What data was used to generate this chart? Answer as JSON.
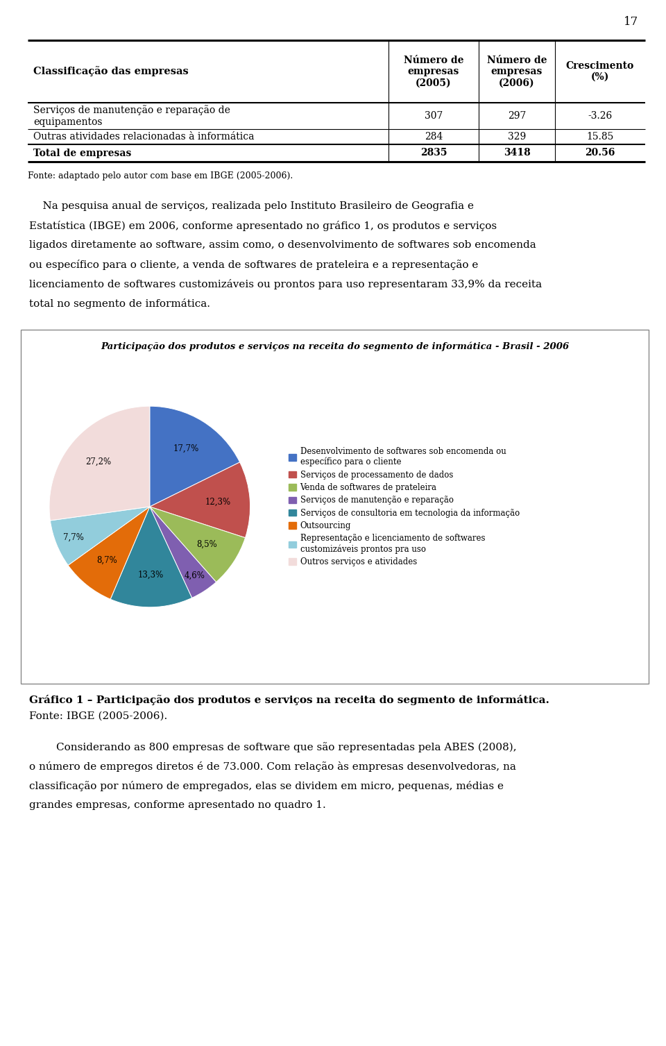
{
  "page_number": "17",
  "table": {
    "col_headers": [
      "Classificação das empresas",
      "Número de\nempresas\n(2005)",
      "Número de\nempresas\n(2006)",
      "Crescimento\n(%)"
    ],
    "rows": [
      [
        "Serviços de manutenção e reparação de\nequipamentos",
        "307",
        "297",
        "-3.26"
      ],
      [
        "Outras atividades relacionadas à informática",
        "284",
        "329",
        "15.85"
      ],
      [
        "Total de empresas",
        "2835",
        "3418",
        "20.56"
      ]
    ],
    "source": "Fonte: adaptado pelo autor com base em IBGE (2005-2006)."
  },
  "para1_lines": [
    "    Na pesquisa anual de serviços, realizada pelo Instituto Brasileiro de Geografia e",
    "Estatística (IBGE) em 2006, conforme apresentado no gráfico 1, os produtos e serviços",
    "ligados diretamente ao software, assim como, o desenvolvimento de softwares sob encomenda",
    "ou específico para o cliente, a venda de softwares de prateleira e a representação e",
    "licenciamento de softwares customizáveis ou prontos para uso representaram 33,9% da receita",
    "total no segmento de informática."
  ],
  "chart": {
    "title": "Participação dos produtos e serviços na receita do segmento de informática - Brasil - 2006",
    "slices": [
      17.7,
      12.3,
      8.5,
      4.6,
      13.3,
      8.7,
      7.7,
      27.2
    ],
    "pct_labels": [
      "17,7%",
      "12,3%",
      "8,5%",
      "4,6%",
      "13,3%",
      "8,7%",
      "7,7%",
      "27,2%"
    ],
    "colors": [
      "#4472C4",
      "#C0504D",
      "#9BBB59",
      "#7F5FB0",
      "#31869B",
      "#E36C09",
      "#92CDDC",
      "#F2DCDB"
    ],
    "legend_labels": [
      "Desenvolvimento de softwares sob encomenda ou\nespecífico para o cliente",
      "Serviços de processamento de dados",
      "Venda de softwares de prateleira",
      "Serviços de manutenção e reparação",
      "Serviços de consultoria em tecnologia da informação",
      "Outsourcing",
      "Representação e licenciamento de softwares\ncustomizáveis prontos pra uso",
      "Outros serviços e atividades"
    ]
  },
  "caption_bold": "Gráfico 1 – Participação dos produtos e serviços na receita do segmento de informática.",
  "caption_source": "Fonte: IBGE (2005-2006).",
  "para2_lines": [
    "        Considerando as 800 empresas de software que são representadas pela ABES (2008),",
    "o número de empregos diretos é de 73.000. Com relação às empresas desenvolvedoras, na",
    "classificação por número de empregados, elas se dividem em micro, pequenas, médias e",
    "grandes empresas, conforme apresentado no quadro 1."
  ],
  "bg_color": "#FFFFFF",
  "text_color": "#000000"
}
